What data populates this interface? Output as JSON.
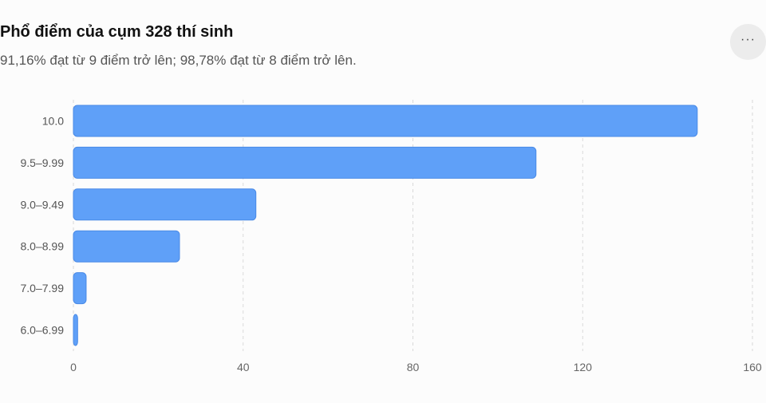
{
  "header": {
    "title": "Phổ điểm của cụm 328 thí sinh",
    "subtitle": "91,16% đạt từ 9 điểm trở lên; 98,78% đạt từ 8 điểm trở lên.",
    "more_label": "···",
    "more_icon": "more-horizontal-icon"
  },
  "chart_data": {
    "type": "bar",
    "orientation": "horizontal",
    "title": "Phổ điểm của cụm 328 thí sinh",
    "subtitle": "91,16% đạt từ 9 điểm trở lên; 98,78% đạt từ 8 điểm trở lên.",
    "categories": [
      "10.0",
      "9.5–9.99",
      "9.0–9.49",
      "8.0–8.99",
      "7.0–7.99",
      "6.0–6.99"
    ],
    "values": [
      147,
      109,
      43,
      25,
      3,
      1
    ],
    "xlim": [
      0,
      160
    ],
    "xticks": [
      0,
      40,
      80,
      120,
      160
    ],
    "grid": true,
    "bar_color": "#5fa0f8",
    "bar_border_color": "#4a8ae6"
  }
}
